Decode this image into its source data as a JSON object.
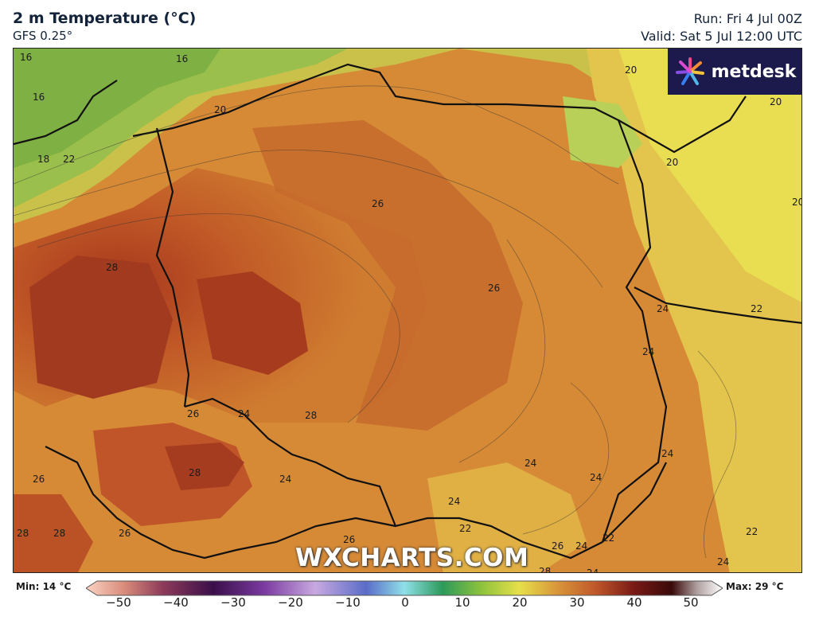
{
  "header": {
    "title": "2 m Temperature (°C)",
    "model": "GFS 0.25°",
    "run": "Run: Fri 4 Jul 00Z",
    "valid": "Valid: Sat 5 Jul 12:00 UTC"
  },
  "brand": {
    "logo_text": "metdesk",
    "watermark": "WXCHARTS.COM"
  },
  "map": {
    "contour_labels": [
      "16",
      "16",
      "16",
      "18",
      "22",
      "20",
      "20",
      "20",
      "20",
      "20",
      "26",
      "28",
      "26",
      "24",
      "22",
      "24",
      "24",
      "26",
      "24",
      "28",
      "24",
      "28",
      "26",
      "24",
      "24",
      "24",
      "24",
      "22",
      "26",
      "28",
      "28",
      "26",
      "22",
      "26",
      "24",
      "28",
      "24",
      "22"
    ]
  },
  "legend": {
    "min_text": "Min: 14 °C",
    "max_text": "Max: 29 °C",
    "ticks": [
      "−50",
      "−40",
      "−30",
      "−20",
      "−10",
      "0",
      "10",
      "20",
      "30",
      "40",
      "50"
    ]
  },
  "colors": {
    "hot": "#b5401f",
    "warm": "#cc6b2a",
    "mild": "#d99a3c",
    "cool": "#e0c24c",
    "green": "#9fc24f",
    "border": "#111111",
    "logo_bg": "#1c1a4c"
  }
}
